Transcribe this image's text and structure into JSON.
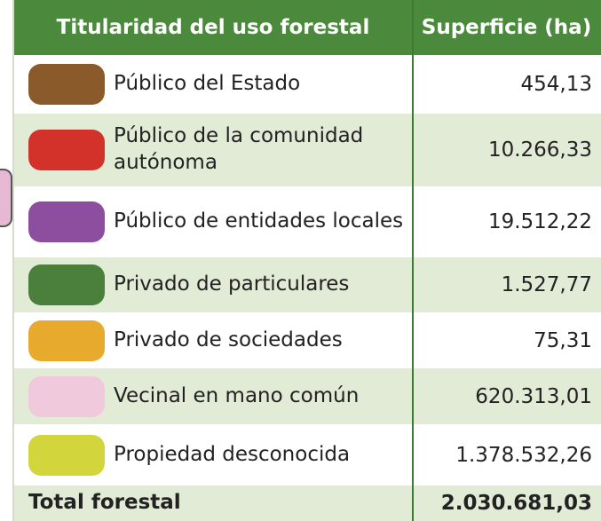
{
  "table": {
    "headers": [
      "Titularidad del uso forestal",
      "Superficie (ha)"
    ],
    "rows": [
      [
        "Público del Estado",
        "454,13"
      ],
      [
        "Público de la comunidad autónoma",
        "10.266,33"
      ],
      [
        "Público de entidades locales",
        "19.512,22"
      ],
      [
        "Privado de particulares",
        "1.527,77"
      ],
      [
        "Privado de sociedades",
        "75,31"
      ],
      [
        "Vecinal en mano común",
        "620.313,01"
      ],
      [
        "Propiedad desconocida",
        "1.378.532,26"
      ]
    ],
    "total": [
      "Total forestal",
      "2.030.681,03"
    ]
  }
}
